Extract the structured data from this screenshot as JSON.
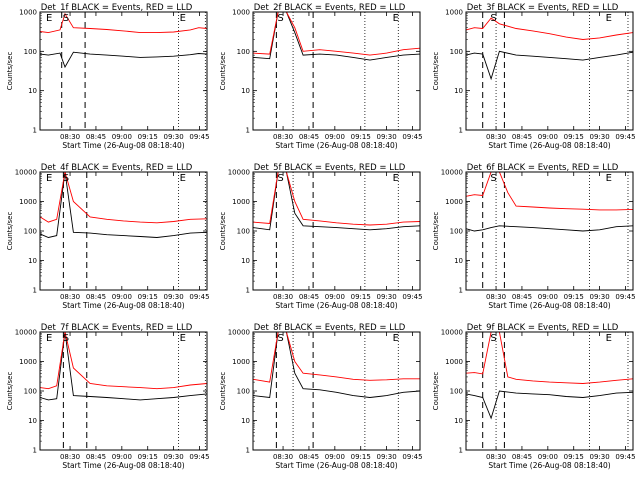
{
  "chart_data": [
    {
      "type": "line",
      "title": "Det_1f BLACK = Events, RED = LLD",
      "xlabel": "Start Time (26-Aug-08 08:18:40)",
      "ylabel": "Counts/sec",
      "yscale": "log",
      "ylim": [
        1,
        1000
      ],
      "y_ticks": [
        "1",
        "10",
        "100",
        "1000"
      ],
      "x_ticks": [
        "08:30",
        "08:45",
        "09:00",
        "09:15",
        "09:30",
        "09:45"
      ],
      "flags": [
        "E",
        "S",
        "E"
      ],
      "series": [
        {
          "name": "",
          "color": "#000000",
          "x": [
            0,
            0.05,
            0.12,
            0.15,
            0.2,
            0.3,
            0.4,
            0.5,
            0.6,
            0.7,
            0.8,
            0.9,
            0.95,
            1.0
          ],
          "y": [
            85,
            80,
            90,
            40,
            95,
            85,
            80,
            75,
            70,
            72,
            75,
            82,
            88,
            85
          ]
        },
        {
          "name": "",
          "color": "#ff0000",
          "x": [
            0,
            0.05,
            0.12,
            0.15,
            0.2,
            0.3,
            0.4,
            0.5,
            0.6,
            0.7,
            0.8,
            0.9,
            0.95,
            1.0
          ],
          "y": [
            320,
            300,
            350,
            900,
            400,
            380,
            360,
            330,
            300,
            300,
            310,
            350,
            400,
            380
          ]
        }
      ],
      "dashed_x": [
        0.13,
        0.27
      ],
      "dotted_x": [
        0.83,
        0.99
      ]
    },
    {
      "type": "line",
      "title": "Det_2f BLACK = Events, RED = LLD",
      "xlabel": "Start Time (26-Aug-08 08:18:40)",
      "ylabel": "Counts/sec",
      "yscale": "log",
      "ylim": [
        1,
        1000
      ],
      "y_ticks": [
        "1",
        "10",
        "100",
        "1000"
      ],
      "x_ticks": [
        "08:30",
        "08:45",
        "09:00",
        "09:15",
        "09:30",
        "09:45"
      ],
      "flags": [
        "S",
        "E"
      ],
      "series": [
        {
          "name": "",
          "color": "#000000",
          "x": [
            0,
            0.1,
            0.15,
            0.2,
            0.25,
            0.3,
            0.4,
            0.5,
            0.6,
            0.7,
            0.8,
            0.9,
            1.0
          ],
          "y": [
            70,
            65,
            1000,
            1000,
            300,
            80,
            85,
            80,
            70,
            60,
            70,
            80,
            85
          ]
        },
        {
          "name": "",
          "color": "#ff0000",
          "x": [
            0,
            0.1,
            0.15,
            0.2,
            0.25,
            0.3,
            0.4,
            0.5,
            0.6,
            0.7,
            0.8,
            0.9,
            1.0
          ],
          "y": [
            90,
            85,
            1000,
            1000,
            400,
            100,
            110,
            100,
            90,
            80,
            90,
            110,
            120
          ]
        }
      ],
      "dashed_x": [
        0.14,
        0.36
      ],
      "dotted_x": [
        0.24,
        0.67,
        0.87
      ]
    },
    {
      "type": "line",
      "title": "Det_3f BLACK = Events, RED = LLD",
      "xlabel": "Start Time (26-Aug-08 08:18:40)",
      "ylabel": "Counts/sec",
      "yscale": "log",
      "ylim": [
        1,
        1000
      ],
      "y_ticks": [
        "1",
        "10",
        "100",
        "1000"
      ],
      "x_ticks": [
        "08:30",
        "08:45",
        "09:00",
        "09:15",
        "09:30",
        "09:45"
      ],
      "flags": [
        "S",
        "E"
      ],
      "series": [
        {
          "name": "",
          "color": "#000000",
          "x": [
            0,
            0.05,
            0.1,
            0.15,
            0.2,
            0.3,
            0.4,
            0.5,
            0.6,
            0.7,
            0.8,
            0.9,
            1.0
          ],
          "y": [
            80,
            90,
            85,
            20,
            100,
            80,
            75,
            70,
            65,
            60,
            70,
            80,
            95
          ]
        },
        {
          "name": "",
          "color": "#ff0000",
          "x": [
            0,
            0.05,
            0.1,
            0.15,
            0.2,
            0.3,
            0.4,
            0.5,
            0.6,
            0.7,
            0.8,
            0.9,
            1.0
          ],
          "y": [
            350,
            400,
            380,
            700,
            500,
            380,
            330,
            280,
            230,
            200,
            220,
            260,
            300
          ]
        }
      ],
      "dashed_x": [
        0.1,
        0.23
      ],
      "dotted_x": [
        0.18,
        0.74,
        0.97
      ]
    },
    {
      "type": "line",
      "title": "Det_4f BLACK = Events, RED = LLD",
      "xlabel": "Start Time (26-Aug-08 08:18:40)",
      "ylabel": "Counts/sec",
      "yscale": "log",
      "ylim": [
        1,
        10000
      ],
      "y_ticks": [
        "1",
        "10",
        "100",
        "1000",
        "10000"
      ],
      "x_ticks": [
        "08:30",
        "08:45",
        "09:00",
        "09:15",
        "09:30",
        "09:45"
      ],
      "flags": [
        "E",
        "S",
        "E"
      ],
      "series": [
        {
          "name": "",
          "color": "#000000",
          "x": [
            0,
            0.05,
            0.1,
            0.15,
            0.2,
            0.3,
            0.4,
            0.5,
            0.6,
            0.7,
            0.8,
            0.9,
            1.0
          ],
          "y": [
            80,
            60,
            70,
            10000,
            90,
            85,
            75,
            70,
            65,
            60,
            70,
            85,
            90
          ]
        },
        {
          "name": "",
          "color": "#ff0000",
          "x": [
            0,
            0.05,
            0.1,
            0.15,
            0.2,
            0.3,
            0.4,
            0.5,
            0.6,
            0.7,
            0.8,
            0.9,
            1.0
          ],
          "y": [
            300,
            200,
            250,
            10000,
            1000,
            300,
            250,
            220,
            200,
            190,
            210,
            250,
            260
          ]
        }
      ],
      "dashed_x": [
        0.14,
        0.28
      ],
      "dotted_x": [
        0.83,
        0.99
      ]
    },
    {
      "type": "line",
      "title": "Det_5f BLACK = Events, RED = LLD",
      "xlabel": "Start Time (26-Aug-08 08:18:40)",
      "ylabel": "Counts/sec",
      "yscale": "log",
      "ylim": [
        1,
        10000
      ],
      "y_ticks": [
        "1",
        "10",
        "100",
        "1000",
        "10000"
      ],
      "x_ticks": [
        "08:30",
        "08:45",
        "09:00",
        "09:15",
        "09:30",
        "09:45"
      ],
      "flags": [
        "S",
        "E"
      ],
      "series": [
        {
          "name": "",
          "color": "#000000",
          "x": [
            0,
            0.1,
            0.15,
            0.2,
            0.25,
            0.3,
            0.4,
            0.5,
            0.6,
            0.7,
            0.8,
            0.9,
            1.0
          ],
          "y": [
            130,
            110,
            10000,
            10000,
            400,
            150,
            140,
            130,
            120,
            110,
            120,
            140,
            150
          ]
        },
        {
          "name": "",
          "color": "#ff0000",
          "x": [
            0,
            0.1,
            0.15,
            0.2,
            0.25,
            0.3,
            0.4,
            0.5,
            0.6,
            0.7,
            0.8,
            0.9,
            1.0
          ],
          "y": [
            200,
            180,
            10000,
            10000,
            1000,
            250,
            220,
            190,
            170,
            160,
            170,
            200,
            210
          ]
        }
      ],
      "dashed_x": [
        0.14,
        0.36
      ],
      "dotted_x": [
        0.24,
        0.67,
        0.87
      ]
    },
    {
      "type": "line",
      "title": "Det_6f BLACK = Events, RED = LLD",
      "xlabel": "Start Time (26-Aug-08 08:18:40)",
      "ylabel": "Counts/sec",
      "yscale": "log",
      "ylim": [
        1,
        10000
      ],
      "y_ticks": [
        "1",
        "10",
        "100",
        "1000",
        "10000"
      ],
      "x_ticks": [
        "08:30",
        "08:45",
        "09:00",
        "09:15",
        "09:30",
        "09:45"
      ],
      "flags": [
        "S",
        "E"
      ],
      "series": [
        {
          "name": "",
          "color": "#000000",
          "x": [
            0,
            0.05,
            0.1,
            0.15,
            0.2,
            0.3,
            0.4,
            0.5,
            0.6,
            0.7,
            0.8,
            0.9,
            1.0
          ],
          "y": [
            120,
            100,
            110,
            130,
            150,
            140,
            130,
            120,
            110,
            100,
            110,
            140,
            150
          ]
        },
        {
          "name": "",
          "color": "#ff0000",
          "x": [
            0,
            0.05,
            0.1,
            0.15,
            0.2,
            0.25,
            0.3,
            0.4,
            0.5,
            0.6,
            0.7,
            0.8,
            0.9,
            1.0
          ],
          "y": [
            1500,
            1700,
            1600,
            10000,
            10000,
            2000,
            700,
            650,
            600,
            570,
            550,
            520,
            520,
            540
          ]
        }
      ],
      "dashed_x": [
        0.1,
        0.23
      ],
      "dotted_x": [
        0.18,
        0.74,
        0.97
      ]
    },
    {
      "type": "line",
      "title": "Det_7f BLACK = Events, RED = LLD",
      "xlabel": "Start Time (26-Aug-08 08:18:40)",
      "ylabel": "Counts/sec",
      "yscale": "log",
      "ylim": [
        1,
        10000
      ],
      "y_ticks": [
        "1",
        "10",
        "100",
        "1000",
        "10000"
      ],
      "x_ticks": [
        "08:30",
        "08:45",
        "09:00",
        "09:15",
        "09:30",
        "09:45"
      ],
      "flags": [
        "E",
        "S",
        "E"
      ],
      "series": [
        {
          "name": "",
          "color": "#000000",
          "x": [
            0,
            0.05,
            0.1,
            0.15,
            0.2,
            0.3,
            0.4,
            0.5,
            0.6,
            0.7,
            0.8,
            0.9,
            1.0
          ],
          "y": [
            60,
            50,
            55,
            10000,
            70,
            65,
            60,
            55,
            50,
            55,
            60,
            70,
            80
          ]
        },
        {
          "name": "",
          "color": "#ff0000",
          "x": [
            0,
            0.05,
            0.1,
            0.15,
            0.2,
            0.3,
            0.4,
            0.5,
            0.6,
            0.7,
            0.8,
            0.9,
            1.0
          ],
          "y": [
            130,
            120,
            150,
            10000,
            600,
            180,
            150,
            140,
            130,
            120,
            130,
            160,
            180
          ]
        }
      ],
      "dashed_x": [
        0.14,
        0.28
      ],
      "dotted_x": [
        0.83,
        0.99
      ]
    },
    {
      "type": "line",
      "title": "Det_8f BLACK = Events, RED = LLD",
      "xlabel": "Start Time (26-Aug-08 08:18:40)",
      "ylabel": "Counts/sec",
      "yscale": "log",
      "ylim": [
        1,
        10000
      ],
      "y_ticks": [
        "1",
        "10",
        "100",
        "1000",
        "10000"
      ],
      "x_ticks": [
        "08:30",
        "08:45",
        "09:00",
        "09:15",
        "09:30",
        "09:45"
      ],
      "flags": [
        "S",
        "E"
      ],
      "series": [
        {
          "name": "",
          "color": "#000000",
          "x": [
            0,
            0.1,
            0.15,
            0.2,
            0.25,
            0.3,
            0.4,
            0.5,
            0.6,
            0.7,
            0.8,
            0.9,
            1.0
          ],
          "y": [
            70,
            60,
            10000,
            10000,
            400,
            120,
            110,
            90,
            70,
            60,
            70,
            90,
            100
          ]
        },
        {
          "name": "",
          "color": "#ff0000",
          "x": [
            0,
            0.1,
            0.15,
            0.2,
            0.25,
            0.3,
            0.4,
            0.5,
            0.6,
            0.7,
            0.8,
            0.9,
            1.0
          ],
          "y": [
            250,
            200,
            10000,
            10000,
            1000,
            400,
            350,
            300,
            250,
            230,
            240,
            260,
            260
          ]
        }
      ],
      "dashed_x": [
        0.14,
        0.36
      ],
      "dotted_x": [
        0.24,
        0.67,
        0.87
      ]
    },
    {
      "type": "line",
      "title": "Det_9f BLACK = Events, RED = LLD",
      "xlabel": "Start Time (26-Aug-08 08:18:40)",
      "ylabel": "Counts/sec",
      "yscale": "log",
      "ylim": [
        1,
        10000
      ],
      "y_ticks": [
        "1",
        "10",
        "100",
        "1000",
        "10000"
      ],
      "x_ticks": [
        "08:30",
        "08:45",
        "09:00",
        "09:15",
        "09:30",
        "09:45"
      ],
      "flags": [
        "S",
        "E"
      ],
      "series": [
        {
          "name": "",
          "color": "#000000",
          "x": [
            0,
            0.05,
            0.1,
            0.15,
            0.2,
            0.3,
            0.4,
            0.5,
            0.6,
            0.7,
            0.8,
            0.9,
            1.0
          ],
          "y": [
            80,
            70,
            60,
            12,
            100,
            85,
            80,
            75,
            65,
            60,
            70,
            85,
            90
          ]
        },
        {
          "name": "",
          "color": "#ff0000",
          "x": [
            0,
            0.05,
            0.1,
            0.15,
            0.2,
            0.25,
            0.3,
            0.4,
            0.5,
            0.6,
            0.7,
            0.8,
            0.9,
            1.0
          ],
          "y": [
            400,
            420,
            380,
            10000,
            10000,
            300,
            250,
            220,
            200,
            190,
            180,
            200,
            230,
            260
          ]
        }
      ],
      "dashed_x": [
        0.1,
        0.23
      ],
      "dotted_x": [
        0.18,
        0.74,
        0.97
      ]
    }
  ]
}
